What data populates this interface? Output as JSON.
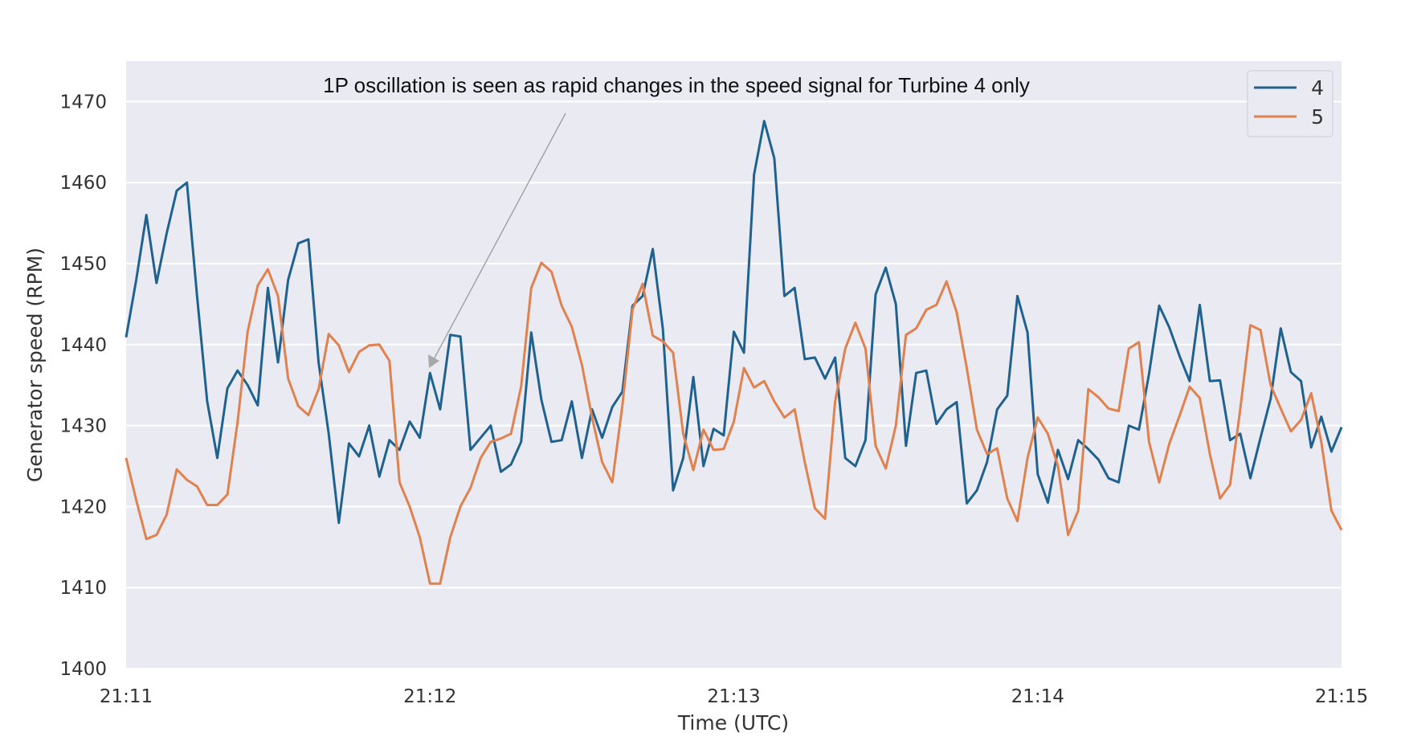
{
  "chart_data": {
    "type": "line",
    "title": "",
    "xlabel": "Time (UTC)",
    "ylabel": "Generator speed (RPM)",
    "xlim": [
      "21:11:00",
      "21:15:00"
    ],
    "ylim": [
      1400,
      1475
    ],
    "x_ticks": [
      "21:11",
      "21:12",
      "21:13",
      "21:14",
      "21:15"
    ],
    "y_ticks": [
      1400,
      1410,
      1420,
      1430,
      1440,
      1450,
      1460,
      1470
    ],
    "grid": "horizontal",
    "background": "#eaeaf2",
    "legend": {
      "placement": "top-right"
    },
    "annotation": {
      "text": "1P oscillation is seen as rapid changes in the speed signal for Turbine 4 only",
      "arrow_target": [
        "21:12:00",
        1437
      ]
    },
    "x": [
      "21:11:00",
      "21:11:02",
      "21:11:04",
      "21:11:06",
      "21:11:08",
      "21:11:10",
      "21:11:12",
      "21:11:14",
      "21:11:16",
      "21:11:18",
      "21:11:20",
      "21:11:22",
      "21:11:24",
      "21:11:26",
      "21:11:28",
      "21:11:30",
      "21:11:32",
      "21:11:34",
      "21:11:36",
      "21:11:38",
      "21:11:40",
      "21:11:42",
      "21:11:44",
      "21:11:46",
      "21:11:48",
      "21:11:50",
      "21:11:52",
      "21:11:54",
      "21:11:56",
      "21:11:58",
      "21:12:00",
      "21:12:02",
      "21:12:04",
      "21:12:06",
      "21:12:08",
      "21:12:10",
      "21:12:12",
      "21:12:14",
      "21:12:16",
      "21:12:18",
      "21:12:20",
      "21:12:22",
      "21:12:24",
      "21:12:26",
      "21:12:28",
      "21:12:30",
      "21:12:32",
      "21:12:34",
      "21:12:36",
      "21:12:38",
      "21:12:40",
      "21:12:42",
      "21:12:44",
      "21:12:46",
      "21:12:48",
      "21:12:50",
      "21:12:52",
      "21:12:54",
      "21:12:56",
      "21:12:58",
      "21:13:00",
      "21:13:02",
      "21:13:04",
      "21:13:06",
      "21:13:08",
      "21:13:10",
      "21:13:12",
      "21:13:14",
      "21:13:16",
      "21:13:18",
      "21:13:20",
      "21:13:22",
      "21:13:24",
      "21:13:26",
      "21:13:28",
      "21:13:30",
      "21:13:32",
      "21:13:34",
      "21:13:36",
      "21:13:38",
      "21:13:40",
      "21:13:42",
      "21:13:44",
      "21:13:46",
      "21:13:48",
      "21:13:50",
      "21:13:52",
      "21:13:54",
      "21:13:56",
      "21:13:58",
      "21:14:00",
      "21:14:02",
      "21:14:04",
      "21:14:06",
      "21:14:08",
      "21:14:10",
      "21:14:12",
      "21:14:14",
      "21:14:16",
      "21:14:18",
      "21:14:20",
      "21:14:22",
      "21:14:24",
      "21:14:26",
      "21:14:28",
      "21:14:30",
      "21:14:32",
      "21:14:34",
      "21:14:36",
      "21:14:38",
      "21:14:40",
      "21:14:42",
      "21:14:44",
      "21:14:46",
      "21:14:48",
      "21:14:50",
      "21:14:52",
      "21:14:54",
      "21:14:56",
      "21:14:58",
      "21:15:00"
    ],
    "series": [
      {
        "name": "4",
        "color": "#1f6290",
        "values": [
          1440.9,
          1448,
          1456,
          1447.6,
          1453.7,
          1459,
          1460,
          1446,
          1433,
          1426,
          1434.6,
          1436.8,
          1435,
          1432.5,
          1447,
          1437.8,
          1448,
          1452.5,
          1453,
          1437.8,
          1429,
          1418,
          1427.8,
          1426.2,
          1430,
          1423.7,
          1428.2,
          1427,
          1430.5,
          1428.5,
          1436.5,
          1432,
          1441.2,
          1441,
          1427,
          1428.5,
          1430,
          1424.3,
          1425.2,
          1428,
          1441.5,
          1433.2,
          1428,
          1428.2,
          1433,
          1426,
          1432,
          1428.5,
          1432.3,
          1434.2,
          1444.8,
          1446,
          1451.8,
          1441.9,
          1422,
          1426,
          1436,
          1425,
          1429.6,
          1428.8,
          1441.6,
          1439,
          1461,
          1467.6,
          1463,
          1446,
          1447,
          1438.2,
          1438.4,
          1435.8,
          1438.4,
          1426,
          1425,
          1428.2,
          1446.2,
          1449.5,
          1445,
          1427.5,
          1436.5,
          1436.8,
          1430.2,
          1432,
          1432.9,
          1420.4,
          1422,
          1425.5,
          1432,
          1433.7,
          1446,
          1441.5,
          1424,
          1420.5,
          1427,
          1423.4,
          1428.2,
          1427.1,
          1425.8,
          1423.5,
          1423,
          1430,
          1429.5,
          1436.4,
          1444.8,
          1442.1,
          1438.6,
          1435.5,
          1444.9,
          1435.5,
          1435.6,
          1428.2,
          1429,
          1423.5,
          1428.5,
          1433.3,
          1442,
          1436.6,
          1435.5,
          1427.3,
          1431.1,
          1426.8,
          1429.8
        ]
      },
      {
        "name": "5",
        "color": "#e0814e",
        "values": [
          1426,
          1420.8,
          1416,
          1416.5,
          1419,
          1424.6,
          1423.3,
          1422.5,
          1420.2,
          1420.2,
          1421.5,
          1430.4,
          1441.6,
          1447.3,
          1449.3,
          1446,
          1435.8,
          1432.4,
          1431.3,
          1434.5,
          1441.3,
          1439.9,
          1436.6,
          1439.1,
          1439.9,
          1440,
          1438,
          1423,
          1420,
          1416.2,
          1410.5,
          1410.5,
          1416.2,
          1420,
          1422.3,
          1426,
          1428,
          1428.4,
          1429,
          1434.8,
          1447,
          1450.1,
          1449,
          1444.8,
          1442.2,
          1437.5,
          1431,
          1425.5,
          1423,
          1432.5,
          1444.3,
          1447.5,
          1441.1,
          1440.4,
          1439,
          1429,
          1424.5,
          1429.5,
          1427,
          1427.1,
          1430.5,
          1437.1,
          1434.7,
          1435.5,
          1433,
          1431,
          1432,
          1425.5,
          1419.8,
          1418.5,
          1433,
          1439.5,
          1442.7,
          1439.5,
          1427.5,
          1424.7,
          1430,
          1441.2,
          1442,
          1444.3,
          1444.9,
          1447.8,
          1444,
          1437.1,
          1429.5,
          1426.5,
          1427.2,
          1421,
          1418.2,
          1426,
          1431,
          1429,
          1425,
          1416.5,
          1419.5,
          1434.5,
          1433.5,
          1432.1,
          1431.8,
          1439.5,
          1440.3,
          1428,
          1423,
          1427.8,
          1431.2,
          1434.8,
          1433.4,
          1426.5,
          1421,
          1422.7,
          1432,
          1442.4,
          1441.8,
          1435,
          1432.1,
          1429.3,
          1430.7,
          1434,
          1428,
          1419.5,
          1417.1
        ]
      }
    ]
  }
}
